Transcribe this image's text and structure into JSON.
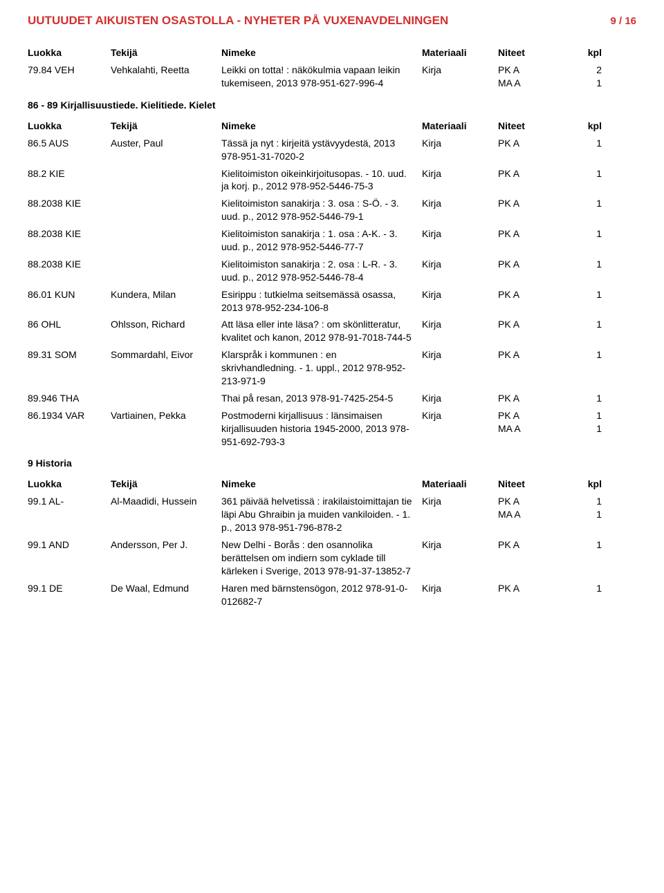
{
  "header": {
    "title": "UUTUUDET AIKUISTEN OSASTOLLA - NYHETER PÅ VUXENAVDELNINGEN",
    "page": "9 / 16"
  },
  "columns": {
    "luokka": "Luokka",
    "tekija": "Tekijä",
    "nimeke": "Nimeke",
    "materiaali": "Materiaali",
    "niteet": "Niteet",
    "kpl": "kpl"
  },
  "sections": [
    {
      "rows": [
        {
          "luokka": "79.84 VEH",
          "tekija": "Vehkalahti, Reetta",
          "nimeke": "Leikki on totta! : näkökulmia vapaan leikin tukemiseen, 2013 978-951-627-996-4",
          "mat": "Kirja",
          "nits": [
            [
              "PK A",
              "2"
            ],
            [
              "MA A",
              "1"
            ]
          ]
        }
      ]
    },
    {
      "title": "86 - 89 Kirjallisuustiede. Kielitiede. Kielet",
      "showHeaders": true,
      "rows": [
        {
          "luokka": "86.5 AUS",
          "tekija": "Auster, Paul",
          "nimeke": "Tässä ja nyt : kirjeitä ystävyydestä, 2013 978-951-31-7020-2",
          "mat": "Kirja",
          "nits": [
            [
              "PK A",
              "1"
            ]
          ]
        },
        {
          "luokka": "88.2 KIE",
          "tekija": "",
          "nimeke": "Kielitoimiston oikeinkirjoitusopas. - 10. uud. ja korj. p., 2012 978-952-5446-75-3",
          "mat": "Kirja",
          "nits": [
            [
              "PK A",
              "1"
            ]
          ]
        },
        {
          "luokka": "88.2038 KIE",
          "tekija": "",
          "nimeke": "Kielitoimiston sanakirja : 3. osa : S-Ö. - 3. uud. p., 2012 978-952-5446-79-1",
          "mat": "Kirja",
          "nits": [
            [
              "PK A",
              "1"
            ]
          ]
        },
        {
          "luokka": "88.2038 KIE",
          "tekija": "",
          "nimeke": "Kielitoimiston sanakirja : 1. osa : A-K. - 3. uud. p., 2012 978-952-5446-77-7",
          "mat": "Kirja",
          "nits": [
            [
              "PK A",
              "1"
            ]
          ]
        },
        {
          "luokka": "88.2038 KIE",
          "tekija": "",
          "nimeke": "Kielitoimiston sanakirja : 2. osa : L-R. - 3. uud. p., 2012 978-952-5446-78-4",
          "mat": "Kirja",
          "nits": [
            [
              "PK A",
              "1"
            ]
          ]
        },
        {
          "luokka": "86.01 KUN",
          "tekija": "Kundera, Milan",
          "nimeke": "Esirippu : tutkielma seitsemässä osassa, 2013 978-952-234-106-8",
          "mat": "Kirja",
          "nits": [
            [
              "PK A",
              "1"
            ]
          ]
        },
        {
          "luokka": "86 OHL",
          "tekija": "Ohlsson, Richard",
          "nimeke": "Att läsa eller inte läsa? : om skönlitteratur, kvalitet och kanon, 2012 978-91-7018-744-5",
          "mat": "Kirja",
          "nits": [
            [
              "PK A",
              "1"
            ]
          ]
        },
        {
          "luokka": "89.31 SOM",
          "tekija": "Sommardahl, Eivor",
          "nimeke": "Klarspråk i kommunen : en skrivhandledning. - 1. uppl., 2012 978-952-213-971-9",
          "mat": "Kirja",
          "nits": [
            [
              "PK A",
              "1"
            ]
          ]
        },
        {
          "luokka": "89.946 THA",
          "tekija": "",
          "nimeke": "Thai på resan, 2013 978-91-7425-254-5",
          "mat": "Kirja",
          "nits": [
            [
              "PK A",
              "1"
            ]
          ]
        },
        {
          "luokka": "86.1934 VAR",
          "tekija": "Vartiainen, Pekka",
          "nimeke": "Postmoderni kirjallisuus : länsimaisen kirjallisuuden historia 1945-2000, 2013 978-951-692-793-3",
          "mat": "Kirja",
          "nits": [
            [
              "PK A",
              "1"
            ],
            [
              "MA A",
              "1"
            ]
          ]
        }
      ]
    },
    {
      "title": "9 Historia",
      "showHeaders": true,
      "rows": [
        {
          "luokka": "99.1 AL-",
          "tekija": "Al-Maadidi, Hussein",
          "nimeke": "361 päivää helvetissä : irakilaistoimittajan tie läpi Abu Ghraibin ja muiden vankiloiden. - 1. p., 2013 978-951-796-878-2",
          "mat": "Kirja",
          "nits": [
            [
              "PK A",
              "1"
            ],
            [
              "MA A",
              "1"
            ]
          ]
        },
        {
          "luokka": "99.1 AND",
          "tekija": "Andersson, Per J.",
          "nimeke": "New Delhi - Borås : den osannolika berättelsen om indiern som cyklade till kärleken i Sverige, 2013 978-91-37-13852-7",
          "mat": "Kirja",
          "nits": [
            [
              "PK A",
              "1"
            ]
          ]
        },
        {
          "luokka": "99.1 DE",
          "tekija": "De Waal, Edmund",
          "nimeke": "Haren med bärnstensögon, 2012 978-91-0-012682-7",
          "mat": "Kirja",
          "nits": [
            [
              "PK A",
              "1"
            ]
          ]
        }
      ]
    }
  ]
}
